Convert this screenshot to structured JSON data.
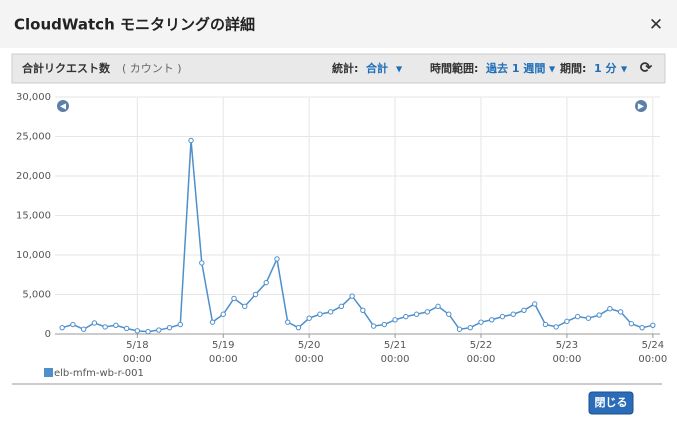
{
  "dialog": {
    "title": "CloudWatch モニタリングの詳細",
    "close_button": "閉じる"
  },
  "toolbar": {
    "metric": "合計リクエスト数",
    "unit": "( カウント )",
    "statistic_label": "統計:",
    "statistic": "合計",
    "range_label": "時間範囲:",
    "range": "過去 1 週間",
    "period_label": "期間:",
    "period": "1 分"
  },
  "chart_data": {
    "type": "line",
    "x": [
      "5/17 03:00",
      "5/17 06:00",
      "5/17 09:00",
      "5/17 12:00",
      "5/17 15:00",
      "5/17 18:00",
      "5/17 21:00",
      "5/18 00:00",
      "5/18 03:00",
      "5/18 06:00",
      "5/18 09:00",
      "5/18 12:00",
      "5/18 15:00",
      "5/18 18:00",
      "5/18 21:00",
      "5/19 00:00",
      "5/19 03:00",
      "5/19 06:00",
      "5/19 09:00",
      "5/19 12:00",
      "5/19 15:00",
      "5/19 18:00",
      "5/19 21:00",
      "5/20 00:00",
      "5/20 03:00",
      "5/20 06:00",
      "5/20 09:00",
      "5/20 12:00",
      "5/20 15:00",
      "5/20 18:00",
      "5/20 21:00",
      "5/21 00:00",
      "5/21 03:00",
      "5/21 06:00",
      "5/21 09:00",
      "5/21 12:00",
      "5/21 15:00",
      "5/21 18:00",
      "5/21 21:00",
      "5/22 00:00",
      "5/22 03:00",
      "5/22 06:00",
      "5/22 09:00",
      "5/22 12:00",
      "5/22 15:00",
      "5/22 18:00",
      "5/22 21:00",
      "5/23 00:00",
      "5/23 03:00",
      "5/23 06:00",
      "5/23 09:00",
      "5/23 12:00",
      "5/23 15:00",
      "5/23 18:00",
      "5/23 21:00",
      "5/24 00:00"
    ],
    "series": [
      {
        "name": "elb-mfm-wb-r-001",
        "color": "#4f8fcc",
        "values": [
          800,
          1200,
          600,
          1400,
          900,
          1100,
          700,
          400,
          300,
          500,
          800,
          1200,
          24500,
          9000,
          1500,
          2500,
          4500,
          3500,
          5000,
          6500,
          9500,
          1500,
          800,
          2000,
          2500,
          2800,
          3500,
          4800,
          3000,
          1000,
          1200,
          1800,
          2200,
          2500,
          2800,
          3500,
          2500,
          600,
          800,
          1500,
          1800,
          2200,
          2500,
          3000,
          3800,
          1200,
          900,
          1600,
          2200,
          2000,
          2400,
          3200,
          2800,
          1300,
          800,
          1100
        ]
      }
    ],
    "xlim": [
      "5/17 01:00",
      "5/24 02:00"
    ],
    "xticks": [
      {
        "value": "5/18 00:00",
        "label": "5/18\n00:00"
      },
      {
        "value": "5/19 00:00",
        "label": "5/19\n00:00"
      },
      {
        "value": "5/20 00:00",
        "label": "5/20\n00:00"
      },
      {
        "value": "5/21 00:00",
        "label": "5/21\n00:00"
      },
      {
        "value": "5/22 00:00",
        "label": "5/22\n00:00"
      },
      {
        "value": "5/23 00:00",
        "label": "5/23\n00:00"
      },
      {
        "value": "5/24 00:00",
        "label": "5/24\n00:00"
      }
    ],
    "ylim": [
      0,
      30000
    ],
    "yticks": [
      0,
      {
        "value": 5000,
        "label": "5,000"
      },
      {
        "value": 10000,
        "label": "10,000"
      },
      {
        "value": 15000,
        "label": "15,000"
      },
      {
        "value": 20000,
        "label": "20,000"
      },
      {
        "value": 25000,
        "label": "25,000"
      },
      {
        "value": 30000,
        "label": "30,000"
      }
    ],
    "grid": true
  }
}
